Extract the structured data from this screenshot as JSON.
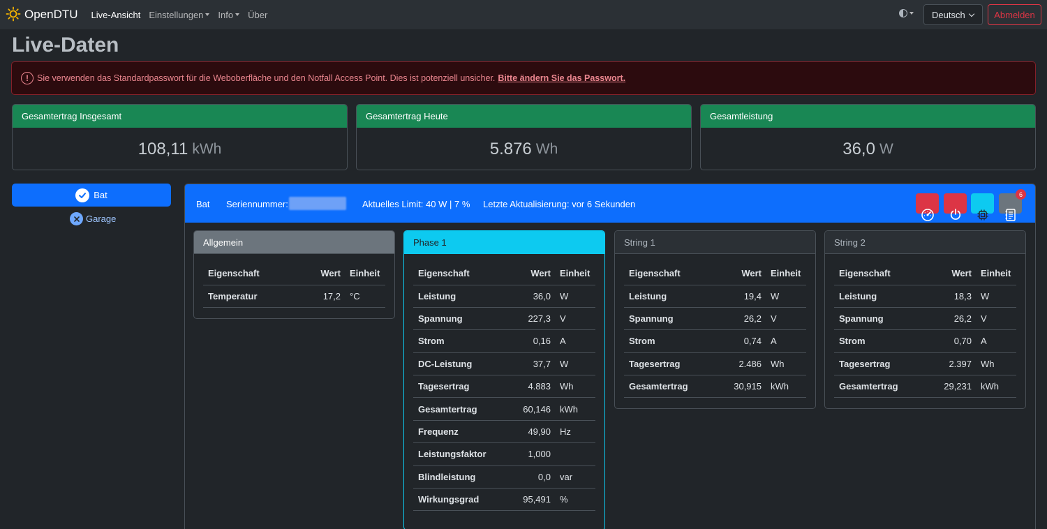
{
  "app": {
    "brand": "OpenDTU"
  },
  "nav": {
    "items": [
      {
        "label": "Live-Ansicht"
      },
      {
        "label": "Einstellungen"
      },
      {
        "label": "Info"
      },
      {
        "label": "Über"
      }
    ],
    "language": "Deutsch",
    "logout_label": "Abmelden"
  },
  "page_title": "Live-Daten",
  "alert": {
    "text": "Sie verwenden das Standardpasswort für die Weboberfläche und den Notfall Access Point. Dies ist potenziell unsicher.",
    "link": "Bitte ändern Sie das Passwort."
  },
  "summary": [
    {
      "label": "Gesamtertrag Insgesamt",
      "value": "108,11",
      "unit": "kWh"
    },
    {
      "label": "Gesamtertrag Heute",
      "value": "5.876",
      "unit": "Wh"
    },
    {
      "label": "Gesamtleistung",
      "value": "36,0",
      "unit": "W"
    }
  ],
  "inverters": [
    {
      "name": "Bat",
      "selected": true
    },
    {
      "name": "Garage",
      "selected": false
    }
  ],
  "inverter_header": {
    "name": "Bat",
    "serial_label": "Seriennummer:",
    "limit": "Aktuelles Limit: 40 W | 7 %",
    "last_update": "Letzte Aktualisierung: vor 6 Sekunden",
    "event_count": "6"
  },
  "colors": {
    "success": "#198754",
    "primary": "#0d6efd",
    "danger": "#dc3545",
    "info": "#0dcaf0",
    "secondary": "#6c757d"
  },
  "columns": {
    "property": "Eigenschaft",
    "value": "Wert",
    "unit": "Einheit"
  },
  "cards": [
    {
      "title": "Allgemein",
      "rows": [
        {
          "prop": "Temperatur",
          "val": "17,2",
          "unit": "°C"
        }
      ]
    },
    {
      "title": "Phase 1",
      "rows": [
        {
          "prop": "Leistung",
          "val": "36,0",
          "unit": "W"
        },
        {
          "prop": "Spannung",
          "val": "227,3",
          "unit": "V"
        },
        {
          "prop": "Strom",
          "val": "0,16",
          "unit": "A"
        },
        {
          "prop": "DC-Leistung",
          "val": "37,7",
          "unit": "W"
        },
        {
          "prop": "Tagesertrag",
          "val": "4.883",
          "unit": "Wh"
        },
        {
          "prop": "Gesamtertrag",
          "val": "60,146",
          "unit": "kWh"
        },
        {
          "prop": "Frequenz",
          "val": "49,90",
          "unit": "Hz"
        },
        {
          "prop": "Leistungsfaktor",
          "val": "1,000",
          "unit": ""
        },
        {
          "prop": "Blindleistung",
          "val": "0,0",
          "unit": "var"
        },
        {
          "prop": "Wirkungsgrad",
          "val": "95,491",
          "unit": "%"
        }
      ]
    },
    {
      "title": "String 1",
      "rows": [
        {
          "prop": "Leistung",
          "val": "19,4",
          "unit": "W"
        },
        {
          "prop": "Spannung",
          "val": "26,2",
          "unit": "V"
        },
        {
          "prop": "Strom",
          "val": "0,74",
          "unit": "A"
        },
        {
          "prop": "Tagesertrag",
          "val": "2.486",
          "unit": "Wh"
        },
        {
          "prop": "Gesamtertrag",
          "val": "30,915",
          "unit": "kWh"
        }
      ]
    },
    {
      "title": "String 2",
      "rows": [
        {
          "prop": "Leistung",
          "val": "18,3",
          "unit": "W"
        },
        {
          "prop": "Spannung",
          "val": "26,2",
          "unit": "V"
        },
        {
          "prop": "Strom",
          "val": "0,70",
          "unit": "A"
        },
        {
          "prop": "Tagesertrag",
          "val": "2.397",
          "unit": "Wh"
        },
        {
          "prop": "Gesamtertrag",
          "val": "29,231",
          "unit": "kWh"
        }
      ]
    }
  ]
}
